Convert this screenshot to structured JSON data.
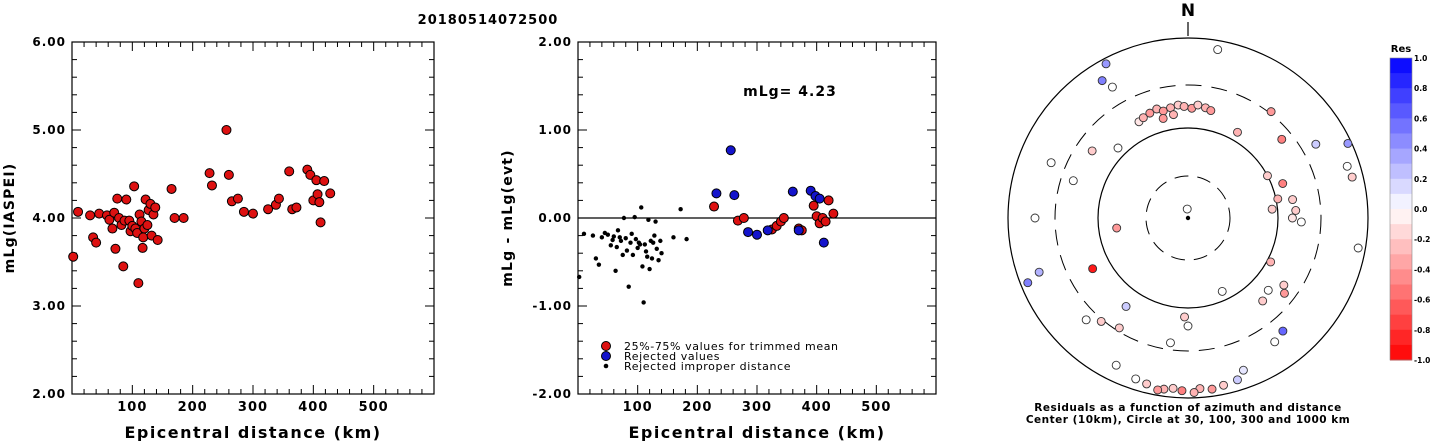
{
  "title": "20180514072500",
  "colors": {
    "accepted": "#dd1111",
    "rejected": "#1414cc",
    "improper": "#000000"
  },
  "chart_data": [
    {
      "type": "scatter",
      "name": "magnitude-vs-distance",
      "xlabel": "Epicentral distance (km)",
      "ylabel": "mLg(IASPEI)",
      "xlim": [
        0,
        600
      ],
      "ylim": [
        2.0,
        6.0
      ],
      "x_ticks": [
        "100",
        "200",
        "300",
        "400",
        "500"
      ],
      "y_ticks": [
        "2.00",
        "3.00",
        "4.00",
        "5.00",
        "6.00"
      ],
      "series": [
        {
          "role": "accepted",
          "points": [
            [
              2,
              3.56
            ],
            [
              10,
              4.07
            ],
            [
              30,
              4.03
            ],
            [
              35,
              3.78
            ],
            [
              40,
              3.72
            ],
            [
              45,
              4.05
            ],
            [
              58,
              4.03
            ],
            [
              62,
              3.98
            ],
            [
              67,
              3.88
            ],
            [
              70,
              4.06
            ],
            [
              72,
              3.65
            ],
            [
              75,
              4.22
            ],
            [
              78,
              4.0
            ],
            [
              82,
              3.92
            ],
            [
              85,
              3.45
            ],
            [
              87,
              3.97
            ],
            [
              90,
              4.21
            ],
            [
              95,
              3.97
            ],
            [
              97,
              3.85
            ],
            [
              100,
              3.91
            ],
            [
              103,
              4.36
            ],
            [
              105,
              3.88
            ],
            [
              108,
              3.83
            ],
            [
              110,
              3.26
            ],
            [
              112,
              4.04
            ],
            [
              115,
              3.96
            ],
            [
              117,
              3.66
            ],
            [
              118,
              3.78
            ],
            [
              120,
              3.88
            ],
            [
              122,
              4.21
            ],
            [
              125,
              3.92
            ],
            [
              127,
              4.09
            ],
            [
              130,
              4.16
            ],
            [
              132,
              3.8
            ],
            [
              135,
              4.04
            ],
            [
              138,
              4.12
            ],
            [
              142,
              3.75
            ],
            [
              165,
              4.33
            ],
            [
              170,
              4.0
            ],
            [
              185,
              4.0
            ],
            [
              228,
              4.51
            ],
            [
              232,
              4.37
            ],
            [
              256,
              5.0
            ],
            [
              260,
              4.49
            ],
            [
              265,
              4.19
            ],
            [
              275,
              4.22
            ],
            [
              285,
              4.07
            ],
            [
              300,
              4.05
            ],
            [
              325,
              4.1
            ],
            [
              338,
              4.15
            ],
            [
              343,
              4.22
            ],
            [
              360,
              4.53
            ],
            [
              365,
              4.1
            ],
            [
              372,
              4.12
            ],
            [
              390,
              4.55
            ],
            [
              395,
              4.49
            ],
            [
              400,
              4.2
            ],
            [
              405,
              4.43
            ],
            [
              407,
              4.27
            ],
            [
              410,
              4.18
            ],
            [
              412,
              3.95
            ],
            [
              418,
              4.42
            ],
            [
              428,
              4.28
            ]
          ]
        }
      ]
    },
    {
      "type": "scatter",
      "name": "residual-vs-distance",
      "xlabel": "Epicentral distance (km)",
      "ylabel": "mLg - mLg(evt)",
      "annotation": "mLg= 4.23",
      "xlim": [
        0,
        600
      ],
      "ylim": [
        -2.0,
        2.0
      ],
      "x_ticks": [
        "100",
        "200",
        "300",
        "400",
        "500"
      ],
      "y_ticks": [
        "-2.00",
        "-1.00",
        "0.00",
        "1.00",
        "2.00"
      ],
      "reference_line": 0,
      "legend": [
        "25%-75% values for trimmed mean",
        "Rejected values",
        "Rejected improper distance"
      ],
      "series": [
        {
          "role": "accepted",
          "points": [
            [
              228,
              0.13
            ],
            [
              268,
              -0.03
            ],
            [
              278,
              0.0
            ],
            [
              325,
              -0.13
            ],
            [
              333,
              -0.09
            ],
            [
              340,
              -0.04
            ],
            [
              345,
              0.0
            ],
            [
              370,
              -0.12
            ],
            [
              375,
              -0.14
            ],
            [
              395,
              0.14
            ],
            [
              400,
              0.02
            ],
            [
              405,
              -0.06
            ],
            [
              410,
              0.0
            ],
            [
              415,
              -0.04
            ],
            [
              420,
              0.2
            ],
            [
              428,
              0.05
            ]
          ]
        },
        {
          "role": "rejected",
          "points": [
            [
              232,
              0.28
            ],
            [
              256,
              0.77
            ],
            [
              262,
              0.26
            ],
            [
              285,
              -0.16
            ],
            [
              300,
              -0.19
            ],
            [
              318,
              -0.14
            ],
            [
              360,
              0.3
            ],
            [
              370,
              -0.14
            ],
            [
              390,
              0.31
            ],
            [
              398,
              0.25
            ],
            [
              405,
              0.22
            ],
            [
              412,
              -0.28
            ]
          ]
        },
        {
          "role": "improper",
          "points": [
            [
              2,
              -0.67
            ],
            [
              10,
              -0.18
            ],
            [
              25,
              -0.2
            ],
            [
              30,
              -0.46
            ],
            [
              35,
              -0.53
            ],
            [
              40,
              -0.22
            ],
            [
              45,
              -0.17
            ],
            [
              50,
              -0.19
            ],
            [
              55,
              -0.31
            ],
            [
              58,
              -0.25
            ],
            [
              60,
              -0.21
            ],
            [
              63,
              -0.6
            ],
            [
              65,
              -0.33
            ],
            [
              67,
              -0.14
            ],
            [
              70,
              -0.22
            ],
            [
              72,
              -0.26
            ],
            [
              75,
              -0.42
            ],
            [
              77,
              0.0
            ],
            [
              80,
              -0.23
            ],
            [
              82,
              -0.37
            ],
            [
              85,
              -0.78
            ],
            [
              88,
              -0.28
            ],
            [
              90,
              -0.18
            ],
            [
              92,
              -0.42
            ],
            [
              95,
              0.01
            ],
            [
              97,
              -0.24
            ],
            [
              100,
              -0.34
            ],
            [
              102,
              -0.28
            ],
            [
              104,
              -0.3
            ],
            [
              106,
              0.12
            ],
            [
              108,
              -0.55
            ],
            [
              110,
              -0.96
            ],
            [
              112,
              -0.3
            ],
            [
              114,
              -0.38
            ],
            [
              116,
              -0.44
            ],
            [
              118,
              -0.02
            ],
            [
              120,
              -0.58
            ],
            [
              122,
              -0.26
            ],
            [
              124,
              -0.46
            ],
            [
              126,
              -0.28
            ],
            [
              128,
              -0.2
            ],
            [
              130,
              -0.04
            ],
            [
              132,
              -0.35
            ],
            [
              135,
              -0.48
            ],
            [
              138,
              -0.26
            ],
            [
              140,
              -0.4
            ],
            [
              160,
              -0.22
            ],
            [
              172,
              0.1
            ],
            [
              182,
              -0.24
            ]
          ]
        }
      ]
    },
    {
      "type": "polar-scatter",
      "name": "azimuth-residuals",
      "north_label": "N",
      "caption_line1": "Residuals as a function of azimuth and distance",
      "caption_line2": "Center (10km), Circle at 30, 100, 300 and 1000 km",
      "colorbar_title": "Res",
      "colorbar_ticks": [
        "1.0",
        "0.8",
        "0.6",
        "0.4",
        "0.2",
        "0.0",
        "-0.2",
        "-0.4",
        "-0.6",
        "-0.8",
        "-1.0"
      ],
      "points": [
        {
          "az": -5,
          "r": 0.05,
          "res": 0.0
        },
        {
          "az": -27,
          "r": 0.6,
          "res": -0.1
        },
        {
          "az": -24,
          "r": 0.61,
          "res": -0.3
        },
        {
          "az": -20,
          "r": 0.62,
          "res": -0.4
        },
        {
          "az": -16,
          "r": 0.63,
          "res": -0.3
        },
        {
          "az": -13,
          "r": 0.61,
          "res": -0.4
        },
        {
          "az": -9,
          "r": 0.62,
          "res": -0.3
        },
        {
          "az": -5,
          "r": 0.63,
          "res": -0.2
        },
        {
          "az": -2,
          "r": 0.62,
          "res": -0.3
        },
        {
          "az": 2,
          "r": 0.61,
          "res": -0.4
        },
        {
          "az": 5,
          "r": 0.63,
          "res": -0.2
        },
        {
          "az": 9,
          "r": 0.62,
          "res": -0.3
        },
        {
          "az": 12,
          "r": 0.61,
          "res": -0.4
        },
        {
          "az": -14,
          "r": 0.57,
          "res": -0.4
        },
        {
          "az": -8,
          "r": 0.58,
          "res": -0.3
        },
        {
          "az": -30,
          "r": 0.84,
          "res": 0.0
        },
        {
          "az": -28,
          "r": 0.97,
          "res": 0.4
        },
        {
          "az": 10,
          "r": 0.95,
          "res": 0.0
        },
        {
          "az": 30,
          "r": 0.55,
          "res": -0.3
        },
        {
          "az": 38,
          "r": 0.75,
          "res": -0.4
        },
        {
          "az": 50,
          "r": 0.68,
          "res": -0.5
        },
        {
          "az": 60,
          "r": 0.82,
          "res": 0.2
        },
        {
          "az": 62,
          "r": 0.5,
          "res": -0.2
        },
        {
          "az": 65,
          "r": 0.98,
          "res": 0.4
        },
        {
          "az": 70,
          "r": 0.56,
          "res": -0.5
        },
        {
          "az": 72,
          "r": 0.93,
          "res": 0.0
        },
        {
          "az": 76,
          "r": 0.94,
          "res": -0.2
        },
        {
          "az": 78,
          "r": 0.51,
          "res": -0.3
        },
        {
          "az": 80,
          "r": 0.59,
          "res": -0.2
        },
        {
          "az": 84,
          "r": 0.47,
          "res": -0.2
        },
        {
          "az": 86,
          "r": 0.6,
          "res": -0.2
        },
        {
          "az": 90,
          "r": 0.58,
          "res": -0.1
        },
        {
          "az": 92,
          "r": 0.63,
          "res": 0.0
        },
        {
          "az": 100,
          "r": 0.96,
          "res": 0.0
        },
        {
          "az": 118,
          "r": 0.52,
          "res": -0.3
        },
        {
          "az": 125,
          "r": 0.65,
          "res": -0.2
        },
        {
          "az": 128,
          "r": 0.68,
          "res": -0.4
        },
        {
          "az": 132,
          "r": 0.6,
          "res": 0.0
        },
        {
          "az": 138,
          "r": 0.62,
          "res": -0.2
        },
        {
          "az": 140,
          "r": 0.82,
          "res": 0.6
        },
        {
          "az": 145,
          "r": 0.84,
          "res": 0.0
        },
        {
          "az": 155,
          "r": 0.45,
          "res": 0.0
        },
        {
          "az": 160,
          "r": 0.9,
          "res": 0.1
        },
        {
          "az": 163,
          "r": 0.94,
          "res": 0.2
        },
        {
          "az": 168,
          "r": 0.95,
          "res": -0.2
        },
        {
          "az": 172,
          "r": 0.96,
          "res": -0.4
        },
        {
          "az": 176,
          "r": 0.95,
          "res": -0.3
        },
        {
          "az": 178,
          "r": 0.97,
          "res": -0.3
        },
        {
          "az": 182,
          "r": 0.96,
          "res": -0.5
        },
        {
          "az": 185,
          "r": 0.95,
          "res": -0.2
        },
        {
          "az": 188,
          "r": 0.96,
          "res": -0.3
        },
        {
          "az": 190,
          "r": 0.97,
          "res": -0.4
        },
        {
          "az": 194,
          "r": 0.95,
          "res": -0.2
        },
        {
          "az": 198,
          "r": 0.94,
          "res": 0.0
        },
        {
          "az": 206,
          "r": 0.91,
          "res": 0.0
        },
        {
          "az": 188,
          "r": 0.7,
          "res": 0.0
        },
        {
          "az": 180,
          "r": 0.6,
          "res": 0.0
        },
        {
          "az": 182,
          "r": 0.55,
          "res": -0.2
        },
        {
          "az": 212,
          "r": 0.72,
          "res": -0.2
        },
        {
          "az": 225,
          "r": 0.8,
          "res": 0.0
        },
        {
          "az": 220,
          "r": 0.75,
          "res": -0.2
        },
        {
          "az": 215,
          "r": 0.6,
          "res": 0.2
        },
        {
          "az": 242,
          "r": 0.6,
          "res": -0.9
        },
        {
          "az": 250,
          "r": 0.88,
          "res": 0.3
        },
        {
          "az": 248,
          "r": 0.96,
          "res": 0.5
        },
        {
          "az": 262,
          "r": 0.4,
          "res": -0.4
        },
        {
          "az": 270,
          "r": 0.85,
          "res": 0.0
        },
        {
          "az": 288,
          "r": 0.67,
          "res": 0.0
        },
        {
          "az": 292,
          "r": 0.82,
          "res": 0.0
        },
        {
          "az": 305,
          "r": 0.65,
          "res": -0.2
        },
        {
          "az": 315,
          "r": 0.55,
          "res": 0.0
        },
        {
          "az": 328,
          "r": 0.9,
          "res": 0.5
        }
      ]
    }
  ]
}
